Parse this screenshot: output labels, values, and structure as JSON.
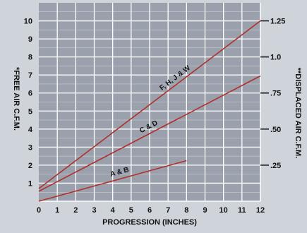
{
  "chart_data": {
    "type": "line",
    "xlabel": "PROGRESSION (INCHES)",
    "ylabel": "*FREE AIR C.F.M.",
    "y2label": "**DISPLACED AIR C.F.M.",
    "xlim": [
      0,
      12
    ],
    "ylim": [
      0,
      11
    ],
    "x_ticks": [
      "0",
      "1",
      "2",
      "3",
      "4",
      "5",
      "6",
      "7",
      "8",
      "9",
      "10",
      "11",
      "12"
    ],
    "y_ticks": [
      "1",
      "2",
      "3",
      "4",
      "5",
      "6",
      "7",
      "8",
      "9",
      "10"
    ],
    "y2_ticks": [
      {
        "label": ".25",
        "value": 2.0
      },
      {
        "label": ".50",
        "value": 4.0
      },
      {
        "label": ".75",
        "value": 6.0
      },
      {
        "label": "1.0",
        "value": 8.0
      },
      {
        "label": "1.25",
        "value": 10.0
      }
    ],
    "grid": true,
    "colors": {
      "line": "#b0302c",
      "grid": "#ffffff",
      "plot_bg": "#9aa0ac",
      "page_bg": "#cfd3da"
    },
    "series": [
      {
        "name": "F, H, J & W",
        "x": [
          0,
          12
        ],
        "y": [
          0.7,
          10.0
        ]
      },
      {
        "name": "C & D",
        "x": [
          0,
          12
        ],
        "y": [
          0.55,
          6.95
        ]
      },
      {
        "name": "A & B",
        "x": [
          0,
          8
        ],
        "y": [
          0.0,
          2.25
        ]
      }
    ]
  }
}
